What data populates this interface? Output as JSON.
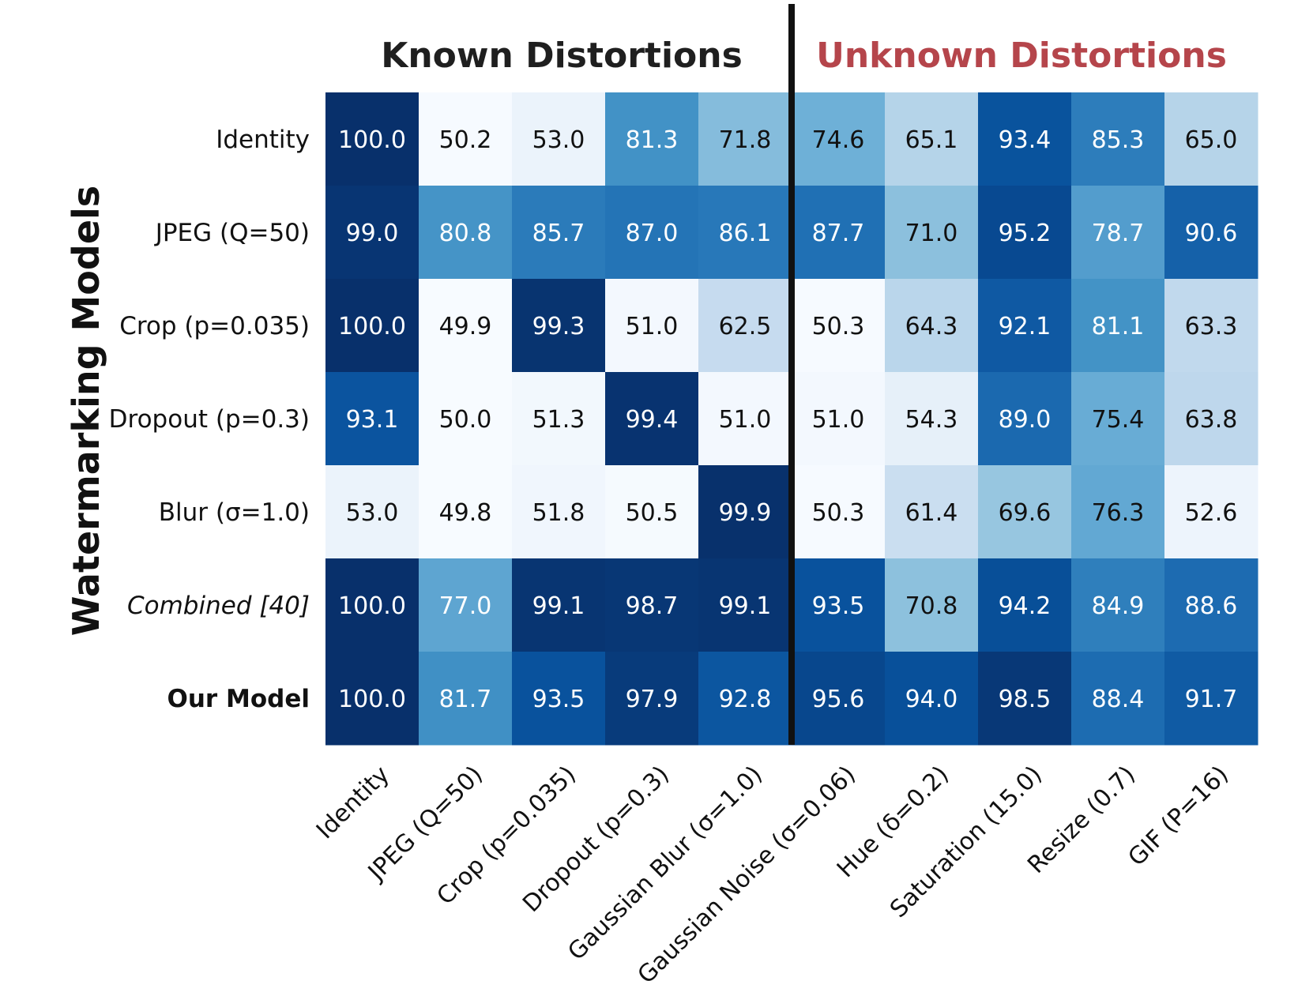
{
  "chart_data": {
    "type": "heatmap",
    "ylabel": "Watermarking Models",
    "groups": [
      {
        "title": "Known Distortions",
        "color": "#1f1f1f"
      },
      {
        "title": "Unknown Distortions",
        "color": "#b5454b"
      }
    ],
    "rows": [
      "Identity",
      "JPEG (Q=50)",
      "Crop (p=0.035)",
      "Dropout (p=0.3)",
      "Blur (σ=1.0)",
      "Combined [40]",
      "Our Model"
    ],
    "columns": [
      "Identity",
      "JPEG (Q=50)",
      "Crop (p=0.035)",
      "Dropout (p=0.3)",
      "Gaussian Blur (σ=1.0)",
      "Gaussian Noise (σ=0.06)",
      "Hue (δ=0.2)",
      "Saturation (15.0)",
      "Resize (0.7)",
      "GIF (P=16)"
    ],
    "values": [
      [
        100.0,
        50.2,
        53.0,
        81.3,
        71.8,
        74.6,
        65.1,
        93.4,
        85.3,
        65.0
      ],
      [
        99.0,
        80.8,
        85.7,
        87.0,
        86.1,
        87.7,
        71.0,
        95.2,
        78.7,
        90.6
      ],
      [
        100.0,
        49.9,
        99.3,
        51.0,
        62.5,
        50.3,
        64.3,
        92.1,
        81.1,
        63.3
      ],
      [
        93.1,
        50.0,
        51.3,
        99.4,
        51.0,
        51.0,
        54.3,
        89.0,
        75.4,
        63.8
      ],
      [
        53.0,
        49.8,
        51.8,
        50.5,
        99.9,
        50.3,
        61.4,
        69.6,
        76.3,
        52.6
      ],
      [
        100.0,
        77.0,
        99.1,
        98.7,
        99.1,
        93.5,
        70.8,
        94.2,
        84.9,
        88.6
      ],
      [
        100.0,
        81.7,
        93.5,
        97.9,
        92.8,
        95.6,
        94.0,
        98.5,
        88.4,
        91.7
      ]
    ],
    "column_group_split": 5,
    "colormap": "Blues",
    "grid": false,
    "legend": "none",
    "row_label_styles": [
      "normal",
      "normal",
      "normal",
      "normal",
      "normal",
      "italic",
      "bold"
    ]
  }
}
